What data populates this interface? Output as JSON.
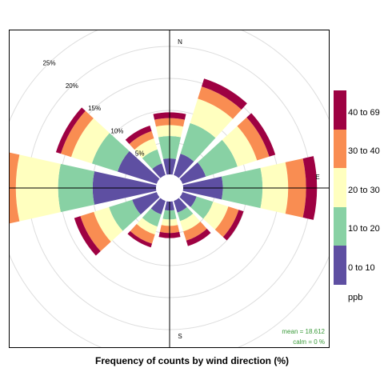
{
  "chart_data": {
    "type": "polar-bar",
    "title": "Frequency of counts by wind direction (%)",
    "compass": [
      "N",
      "E",
      "S"
    ],
    "radial_ticks": [
      "5%",
      "10%",
      "15%",
      "20%",
      "25%"
    ],
    "radial_values": [
      5,
      10,
      15,
      20,
      25
    ],
    "directions_deg": [
      0,
      30,
      60,
      90,
      120,
      150,
      180,
      210,
      240,
      270,
      300,
      330
    ],
    "bins": [
      {
        "label": "0 to 10",
        "color": "#5E4FA2"
      },
      {
        "label": "10 to 20",
        "color": "#88D1A4"
      },
      {
        "label": "20 to 30",
        "color": "#FFFFBF"
      },
      {
        "label": "30 to 40",
        "color": "#F98D52"
      },
      {
        "label": "40 to 69",
        "color": "#9E0142"
      }
    ],
    "cumulative_percent": [
      [
        2.5,
        6.0,
        7.7,
        8.8,
        9.7
      ],
      [
        3.5,
        8.5,
        12.5,
        14.5,
        15.8
      ],
      [
        3.8,
        9.0,
        12.2,
        14.2,
        15.2
      ],
      [
        6.2,
        12.4,
        16.4,
        19.2,
        20.9
      ],
      [
        2.3,
        5.0,
        7.5,
        9.2,
        10.0
      ],
      [
        1.9,
        3.3,
        5.0,
        6.5,
        7.4
      ],
      [
        1.4,
        2.8,
        3.8,
        4.9,
        5.7
      ],
      [
        2.2,
        4.2,
        5.5,
        7.0,
        7.6
      ],
      [
        4.0,
        7.8,
        10.3,
        12.5,
        13.5
      ],
      [
        9.9,
        15.3,
        21.9,
        24.1,
        25.7
      ],
      [
        6.4,
        10.6,
        14.0,
        15.7,
        16.5
      ],
      [
        1.9,
        4.2,
        6.0,
        7.2,
        8.1
      ]
    ],
    "legend_title": "ppb",
    "stats": {
      "mean": "mean =  18.612",
      "calm": "calm =  0 %"
    },
    "stats_color": "#3A9A3A"
  }
}
